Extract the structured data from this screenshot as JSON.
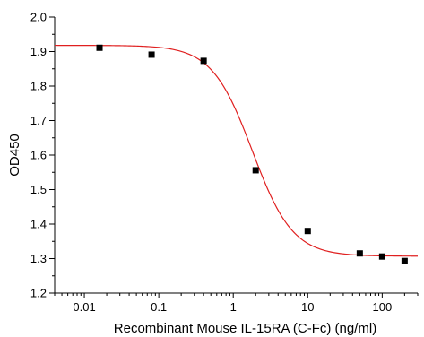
{
  "chart_data": {
    "type": "scatter",
    "title": "",
    "xlabel": "Recombinant Mouse IL-15RA (C-Fc) (ng/ml)",
    "ylabel": "OD450",
    "xscale": "log",
    "xlim": [
      0.004,
      300
    ],
    "ylim": [
      1.2,
      2.0
    ],
    "xticks": [
      0.01,
      0.1,
      1,
      10,
      100
    ],
    "xtick_labels": [
      "0.01",
      "0.1",
      "1",
      "10",
      "100"
    ],
    "yticks": [
      1.2,
      1.3,
      1.4,
      1.5,
      1.6,
      1.7,
      1.8,
      1.9,
      2.0
    ],
    "ytick_labels": [
      "1.2",
      "1.3",
      "1.4",
      "1.5",
      "1.6",
      "1.7",
      "1.8",
      "1.9",
      "2.0"
    ],
    "grid": false,
    "legend": "none",
    "series": [
      {
        "marker": "square",
        "color": "#000000",
        "x": [
          0.016,
          0.08,
          0.4,
          2,
          10,
          50,
          100,
          200
        ],
        "y": [
          1.911,
          1.891,
          1.873,
          1.556,
          1.38,
          1.315,
          1.306,
          1.293
        ]
      }
    ],
    "fit": {
      "model": "4PL",
      "color": "#e02020",
      "top": 1.918,
      "bottom": 1.307,
      "ec50": 1.8,
      "hill": 1.6
    }
  }
}
